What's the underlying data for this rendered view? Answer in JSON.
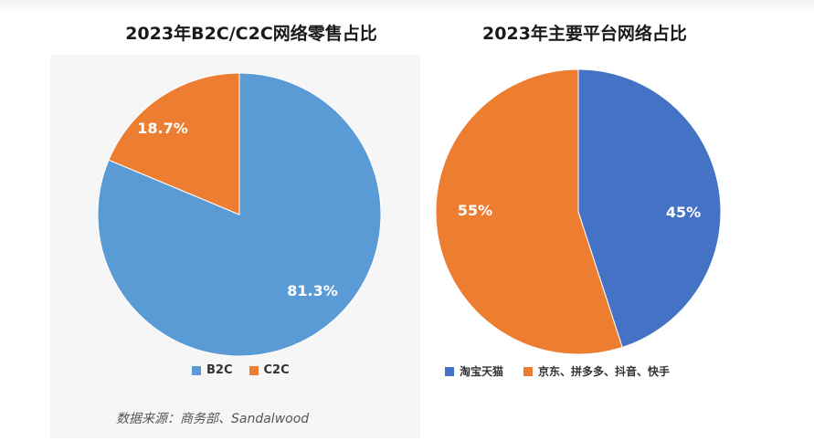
{
  "chart_data": [
    {
      "type": "pie",
      "title": "2023年B2C/C2C网络零售占比",
      "categories": [
        "B2C",
        "C2C"
      ],
      "values": [
        81.3,
        18.7
      ],
      "labels": [
        "81.3%",
        "18.7%"
      ],
      "colors": [
        "#5B9BD5",
        "#ED7D31"
      ],
      "legend": "bottom"
    },
    {
      "type": "pie",
      "title": "2023年主要平台网络占比",
      "categories": [
        "淘宝天猫",
        "京东、拼多多、抖音、快手"
      ],
      "values": [
        45,
        55
      ],
      "labels": [
        "45%",
        "55%"
      ],
      "colors": [
        "#4472C4",
        "#ED7D31"
      ],
      "legend": "bottom"
    }
  ],
  "source": "数据来源：商务部、Sandalwood"
}
